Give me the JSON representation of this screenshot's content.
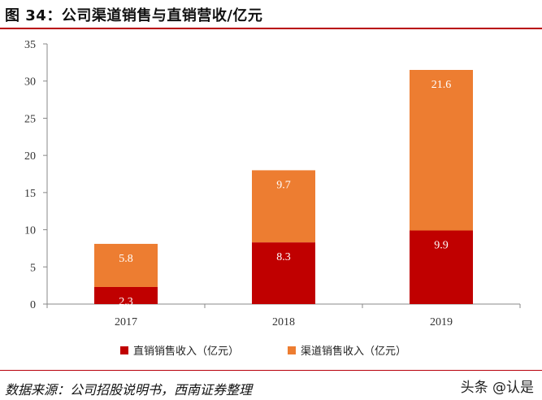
{
  "header": {
    "title": "图 34：公司渠道销售与直销营收/亿元"
  },
  "chart_data": {
    "type": "bar",
    "stacked": true,
    "categories": [
      "2017",
      "2018",
      "2019"
    ],
    "series": [
      {
        "name": "直销销售收入（亿元）",
        "values": [
          2.3,
          8.3,
          9.9
        ],
        "color": "#c00000",
        "label_color": "#ffffff"
      },
      {
        "name": "渠道销售收入（亿元）",
        "values": [
          5.8,
          9.7,
          21.6
        ],
        "color": "#ed7d31",
        "label_color": "#ffffff"
      }
    ],
    "ylim": [
      0,
      35
    ],
    "yticks": [
      "0",
      "5",
      "10",
      "15",
      "20",
      "25",
      "30",
      "35"
    ],
    "grid": false,
    "legend_position": "bottom",
    "xlabel": "",
    "ylabel": ""
  },
  "footer": {
    "source": "数据来源：公司招股说明书，西南证券整理",
    "watermark": "头条 @认是"
  }
}
